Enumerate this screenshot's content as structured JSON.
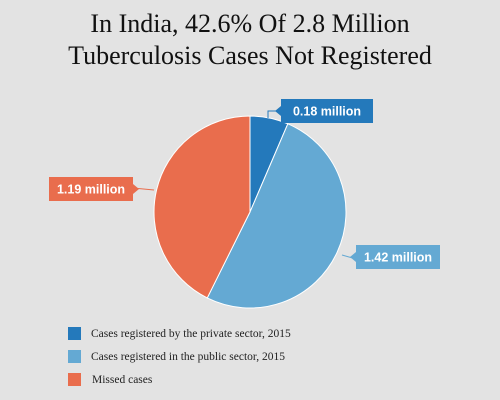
{
  "chart_data": {
    "type": "pie",
    "title_lines": [
      "In India, 42.6% Of 2.8 Million",
      "Tuberculosis Cases Not Registered"
    ],
    "slices": [
      {
        "label": "Cases registered by the private sector, 2015",
        "value": 0.18,
        "data_label": "0.18 million",
        "color": "#2479bb"
      },
      {
        "label": "Cases registered in the public sector, 2015",
        "value": 1.42,
        "data_label": "1.42 million",
        "color": "#64a9d3"
      },
      {
        "label": "Missed cases",
        "value": 1.19,
        "data_label": "1.19 million",
        "color": "#e96d4d"
      }
    ],
    "legend_position": "bottom-left"
  }
}
